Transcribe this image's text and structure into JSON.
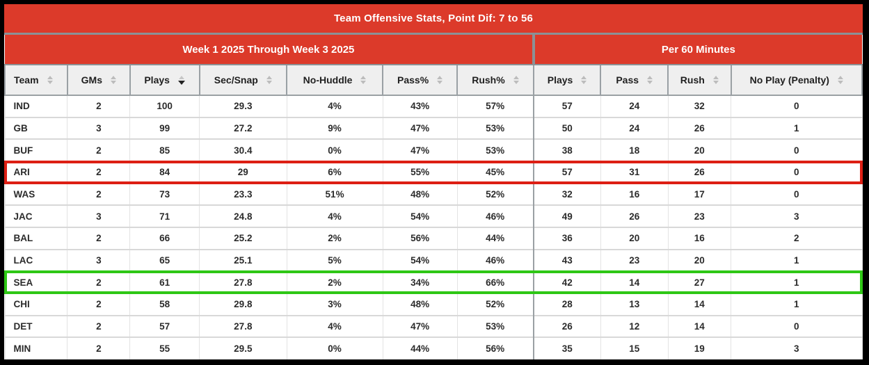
{
  "title": "Team Offensive Stats, Point Dif: 7 to 56",
  "groups": [
    {
      "label": "Week 1 2025 Through Week 3 2025"
    },
    {
      "label": "Per 60 Minutes"
    }
  ],
  "columns": [
    {
      "key": "team",
      "label": "Team",
      "group": 0,
      "sort": "none"
    },
    {
      "key": "gms",
      "label": "GMs",
      "group": 0,
      "sort": "none"
    },
    {
      "key": "plays",
      "label": "Plays",
      "group": 0,
      "sort": "desc"
    },
    {
      "key": "sec_snap",
      "label": "Sec/Snap",
      "group": 0,
      "sort": "none"
    },
    {
      "key": "no_huddle",
      "label": "No-Huddle",
      "group": 0,
      "sort": "none"
    },
    {
      "key": "pass_pct",
      "label": "Pass%",
      "group": 0,
      "sort": "none"
    },
    {
      "key": "rush_pct",
      "label": "Rush%",
      "group": 0,
      "sort": "none"
    },
    {
      "key": "plays_per60",
      "label": "Plays",
      "group": 1,
      "sort": "none"
    },
    {
      "key": "pass_per60",
      "label": "Pass",
      "group": 1,
      "sort": "none"
    },
    {
      "key": "rush_per60",
      "label": "Rush",
      "group": 1,
      "sort": "none"
    },
    {
      "key": "no_play_penalty",
      "label": "No Play (Penalty)",
      "group": 1,
      "sort": "none"
    }
  ],
  "rows": [
    {
      "team": "IND",
      "gms": "2",
      "plays": "100",
      "sec_snap": "29.3",
      "no_huddle": "4%",
      "pass_pct": "43%",
      "rush_pct": "57%",
      "plays_per60": "57",
      "pass_per60": "24",
      "rush_per60": "32",
      "no_play_penalty": "0",
      "highlight": null
    },
    {
      "team": "GB",
      "gms": "3",
      "plays": "99",
      "sec_snap": "27.2",
      "no_huddle": "9%",
      "pass_pct": "47%",
      "rush_pct": "53%",
      "plays_per60": "50",
      "pass_per60": "24",
      "rush_per60": "26",
      "no_play_penalty": "1",
      "highlight": null
    },
    {
      "team": "BUF",
      "gms": "2",
      "plays": "85",
      "sec_snap": "30.4",
      "no_huddle": "0%",
      "pass_pct": "47%",
      "rush_pct": "53%",
      "plays_per60": "38",
      "pass_per60": "18",
      "rush_per60": "20",
      "no_play_penalty": "0",
      "highlight": null
    },
    {
      "team": "ARI",
      "gms": "2",
      "plays": "84",
      "sec_snap": "29",
      "no_huddle": "6%",
      "pass_pct": "55%",
      "rush_pct": "45%",
      "plays_per60": "57",
      "pass_per60": "31",
      "rush_per60": "26",
      "no_play_penalty": "0",
      "highlight": "red"
    },
    {
      "team": "WAS",
      "gms": "2",
      "plays": "73",
      "sec_snap": "23.3",
      "no_huddle": "51%",
      "pass_pct": "48%",
      "rush_pct": "52%",
      "plays_per60": "32",
      "pass_per60": "16",
      "rush_per60": "17",
      "no_play_penalty": "0",
      "highlight": null
    },
    {
      "team": "JAC",
      "gms": "3",
      "plays": "71",
      "sec_snap": "24.8",
      "no_huddle": "4%",
      "pass_pct": "54%",
      "rush_pct": "46%",
      "plays_per60": "49",
      "pass_per60": "26",
      "rush_per60": "23",
      "no_play_penalty": "3",
      "highlight": null
    },
    {
      "team": "BAL",
      "gms": "2",
      "plays": "66",
      "sec_snap": "25.2",
      "no_huddle": "2%",
      "pass_pct": "56%",
      "rush_pct": "44%",
      "plays_per60": "36",
      "pass_per60": "20",
      "rush_per60": "16",
      "no_play_penalty": "2",
      "highlight": null
    },
    {
      "team": "LAC",
      "gms": "3",
      "plays": "65",
      "sec_snap": "25.1",
      "no_huddle": "5%",
      "pass_pct": "54%",
      "rush_pct": "46%",
      "plays_per60": "43",
      "pass_per60": "23",
      "rush_per60": "20",
      "no_play_penalty": "1",
      "highlight": null
    },
    {
      "team": "SEA",
      "gms": "2",
      "plays": "61",
      "sec_snap": "27.8",
      "no_huddle": "2%",
      "pass_pct": "34%",
      "rush_pct": "66%",
      "plays_per60": "42",
      "pass_per60": "14",
      "rush_per60": "27",
      "no_play_penalty": "1",
      "highlight": "green"
    },
    {
      "team": "CHI",
      "gms": "2",
      "plays": "58",
      "sec_snap": "29.8",
      "no_huddle": "3%",
      "pass_pct": "48%",
      "rush_pct": "52%",
      "plays_per60": "28",
      "pass_per60": "13",
      "rush_per60": "14",
      "no_play_penalty": "1",
      "highlight": null
    },
    {
      "team": "DET",
      "gms": "2",
      "plays": "57",
      "sec_snap": "27.8",
      "no_huddle": "4%",
      "pass_pct": "47%",
      "rush_pct": "53%",
      "plays_per60": "26",
      "pass_per60": "12",
      "rush_per60": "14",
      "no_play_penalty": "0",
      "highlight": null
    },
    {
      "team": "MIN",
      "gms": "2",
      "plays": "55",
      "sec_snap": "29.5",
      "no_huddle": "0%",
      "pass_pct": "44%",
      "rush_pct": "56%",
      "plays_per60": "35",
      "pass_per60": "15",
      "rush_per60": "19",
      "no_play_penalty": "3",
      "highlight": null
    }
  ],
  "colors": {
    "banner_red": "#dc3a2a",
    "highlight_red": "#dd1f14",
    "highlight_green": "#2ec715"
  }
}
